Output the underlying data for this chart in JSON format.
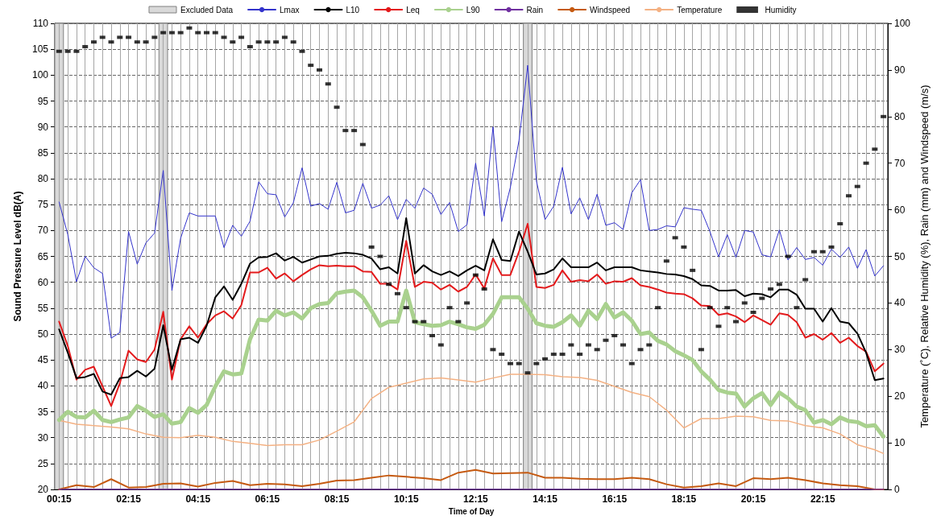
{
  "chart_data": {
    "type": "line",
    "xlabel": "Time of Day",
    "ylabel": "Sound Pressure Level dB(A)",
    "y2label": "Temperature (˚C), Relative Humidity (%), Rain (mm) and Windspeed (m/s)",
    "x": [
      0.25,
      0.5,
      0.75,
      1,
      1.25,
      1.5,
      1.75,
      2,
      2.25,
      2.5,
      2.75,
      3,
      3.25,
      3.5,
      3.75,
      4,
      4.25,
      4.5,
      4.75,
      5,
      5.25,
      5.5,
      5.75,
      6,
      6.25,
      6.5,
      6.75,
      7,
      7.25,
      7.5,
      7.75,
      8,
      8.25,
      8.5,
      8.75,
      9,
      9.25,
      9.5,
      9.75,
      10,
      10.25,
      10.5,
      10.75,
      11,
      11.25,
      11.5,
      11.75,
      12,
      12.25,
      12.5,
      12.75,
      13,
      13.25,
      13.5,
      13.75,
      14,
      14.25,
      14.5,
      14.75,
      15,
      15.25,
      15.5,
      15.75,
      16,
      16.25,
      16.5,
      16.75,
      17,
      17.25,
      17.5,
      17.75,
      18,
      18.25,
      18.5,
      18.75,
      19,
      19.25,
      19.5,
      19.75,
      20,
      20.25,
      20.5,
      20.75,
      21,
      21.25,
      21.5,
      21.75,
      22,
      22.25,
      22.5,
      22.75,
      23,
      23.25,
      23.5,
      23.75,
      24
    ],
    "series": [
      {
        "name": "Lmax",
        "color": "#3333cc",
        "values": [
          75.5,
          69.2,
          60.1,
          65.0,
          62.8,
          61.7,
          49.2,
          50.3,
          69.8,
          63.5,
          67.6,
          69.5,
          81.6,
          58.4,
          68.5,
          73.4,
          72.8,
          72.8,
          72.8,
          66.7,
          71.0,
          68.9,
          71.8,
          79.4,
          77.1,
          76.9,
          72.6,
          75.4,
          82.1,
          74.7,
          75.2,
          74.1,
          79.3,
          73.4,
          73.9,
          79.1,
          74.3,
          74.9,
          76.7,
          72.1,
          76.0,
          74.3,
          78.2,
          77.0,
          73.1,
          75.4,
          69.8,
          71.1,
          83.0,
          72.8,
          90.0,
          71.7,
          78.3,
          87.4,
          101.9,
          79.6,
          72.1,
          74.7,
          82.2,
          73.2,
          76.3,
          72.1,
          77.0,
          71.0,
          71.5,
          70.2,
          77.3,
          79.8,
          70.0,
          70.2,
          70.9,
          70.7,
          74.4,
          74.1,
          73.9,
          69.8,
          64.9,
          69.2,
          64.8,
          70.0,
          69.7,
          65.3,
          64.9,
          70.1,
          64.3,
          66.7,
          64.4,
          64.8,
          63.3,
          66.4,
          64.8,
          66.8,
          62.7,
          66.3,
          61.2,
          63.2
        ]
      },
      {
        "name": "L10",
        "color": "#000000",
        "values": [
          50.9,
          46.4,
          41.5,
          41.7,
          42.3,
          38.9,
          38.3,
          41.5,
          41.7,
          42.9,
          41.8,
          43.3,
          51.7,
          43.1,
          49.0,
          49.3,
          48.3,
          51.6,
          57.1,
          59.2,
          56.6,
          59.7,
          63.6,
          64.8,
          64.9,
          65.6,
          64.2,
          64.9,
          63.8,
          64.4,
          65.0,
          65.1,
          65.5,
          65.7,
          65.6,
          65.3,
          64.6,
          62.5,
          62.9,
          61.7,
          72.4,
          61.7,
          63.3,
          62.1,
          61.4,
          62.1,
          61.2,
          62.3,
          63.2,
          62.3,
          68.3,
          64.3,
          64.1,
          69.8,
          65.9,
          61.5,
          61.7,
          62.5,
          64.6,
          62.9,
          62.9,
          62.9,
          63.8,
          62.3,
          62.9,
          62.9,
          62.9,
          62.3,
          62.1,
          61.9,
          61.6,
          61.5,
          61.2,
          60.6,
          59.4,
          59.3,
          58.4,
          58.4,
          58.5,
          57.3,
          57.8,
          57.7,
          57.1,
          58.6,
          58.6,
          57.6,
          54.9,
          54.9,
          52.4,
          55.0,
          52.4,
          52.1,
          50.1,
          46.4,
          41.1,
          41.4
        ]
      },
      {
        "name": "Leq",
        "color": "#e31a1c",
        "values": [
          52.4,
          47.7,
          41.2,
          43.1,
          43.7,
          39.9,
          36.1,
          40.5,
          46.8,
          45.1,
          44.6,
          47.0,
          54.3,
          41.2,
          49.0,
          51.5,
          49.3,
          51.9,
          53.6,
          54.4,
          53.0,
          55.6,
          61.9,
          61.9,
          62.8,
          60.7,
          61.7,
          60.2,
          61.4,
          62.5,
          63.3,
          63.1,
          63.2,
          63.1,
          63.1,
          62.1,
          62.0,
          59.7,
          59.7,
          58.6,
          68.0,
          59.1,
          60.1,
          59.9,
          58.6,
          59.5,
          58.2,
          59.1,
          61.5,
          58.8,
          64.6,
          61.4,
          61.4,
          65.9,
          71.3,
          59.1,
          58.9,
          59.5,
          62.3,
          60.1,
          60.4,
          60.2,
          61.5,
          59.7,
          60.2,
          60.1,
          60.8,
          59.4,
          59.1,
          58.6,
          58.0,
          57.8,
          57.7,
          56.9,
          55.5,
          55.4,
          53.7,
          54.0,
          53.4,
          52.3,
          53.6,
          52.7,
          51.8,
          54.0,
          53.7,
          52.3,
          49.3,
          50.0,
          48.9,
          50.2,
          48.3,
          49.3,
          47.7,
          46.6,
          42.8,
          44.3
        ]
      },
      {
        "name": "L90",
        "color": "#a9d18e",
        "values": [
          33.4,
          35.0,
          34.0,
          33.9,
          35.2,
          33.4,
          33.0,
          33.5,
          33.9,
          36.1,
          35.2,
          34.0,
          34.5,
          32.7,
          33.0,
          35.7,
          34.8,
          36.3,
          39.9,
          42.8,
          42.2,
          42.4,
          49.0,
          52.8,
          52.6,
          54.5,
          53.6,
          54.2,
          53.0,
          55.0,
          55.8,
          56.0,
          57.9,
          58.2,
          58.4,
          57.1,
          54.5,
          51.6,
          52.4,
          52.4,
          58.4,
          52.3,
          51.9,
          51.6,
          51.7,
          52.4,
          51.9,
          51.3,
          51.0,
          51.8,
          53.9,
          57.1,
          57.1,
          57.1,
          54.9,
          52.1,
          51.6,
          51.4,
          52.3,
          53.6,
          51.6,
          54.5,
          52.9,
          55.8,
          53.2,
          54.2,
          52.6,
          50.0,
          50.3,
          48.7,
          48.0,
          46.7,
          45.9,
          45.0,
          42.8,
          41.2,
          39.2,
          38.7,
          38.5,
          36.0,
          37.6,
          38.6,
          36.3,
          38.7,
          37.6,
          36.0,
          35.3,
          32.9,
          33.4,
          32.6,
          33.9,
          33.2,
          33.0,
          32.2,
          32.4,
          30.2
        ]
      },
      {
        "name": "Rain",
        "color": "#7030a0",
        "axis": "y2",
        "x": [
          0.25,
          24
        ],
        "values": [
          0,
          0
        ]
      },
      {
        "name": "Windspeed",
        "color": "#c55a11",
        "axis": "y2",
        "x": [
          0.25,
          0.75,
          1.25,
          1.75,
          2.25,
          2.75,
          3.25,
          3.75,
          4.25,
          4.75,
          5.25,
          5.75,
          6.25,
          6.75,
          7.25,
          7.75,
          8.25,
          8.75,
          9.25,
          9.75,
          10.25,
          10.75,
          11.25,
          11.75,
          12.25,
          12.75,
          13.25,
          13.75,
          14.25,
          14.75,
          15.25,
          15.75,
          16.25,
          16.75,
          17.25,
          17.75,
          18.25,
          18.75,
          19.25,
          19.75,
          20.25,
          20.75,
          21.25,
          21.75,
          22.25,
          22.75,
          23.25,
          23.75,
          24
        ],
        "values": [
          0,
          0.9,
          0.5,
          2.2,
          0.4,
          0.5,
          1.2,
          1.3,
          0.6,
          1.4,
          1.8,
          0.9,
          1.2,
          1.1,
          0.7,
          1.2,
          1.9,
          2.0,
          2.5,
          3.0,
          2.7,
          2.4,
          2.0,
          3.6,
          4.2,
          3.4,
          3.5,
          3.6,
          2.5,
          2.5,
          2.3,
          2.2,
          2.2,
          2.5,
          2.2,
          1.1,
          0.4,
          0.7,
          1.3,
          0.7,
          2.4,
          2.2,
          2.5,
          2.0,
          1.3,
          0.9,
          0.7,
          0,
          0
        ]
      },
      {
        "name": "Temperature",
        "color": "#f4b183",
        "axis": "y2",
        "x": [
          0.25,
          0.75,
          1.25,
          1.75,
          2.25,
          2.75,
          3.25,
          3.75,
          4.25,
          4.75,
          5.25,
          5.75,
          6.25,
          6.75,
          7.25,
          7.75,
          8.25,
          8.75,
          9.25,
          9.75,
          10.25,
          10.75,
          11.25,
          11.75,
          12.25,
          12.75,
          13.25,
          13.75,
          14.25,
          14.75,
          15.25,
          15.75,
          16.25,
          16.75,
          17.25,
          17.75,
          18.25,
          18.75,
          19.25,
          19.75,
          20.25,
          20.75,
          21.25,
          21.75,
          22.25,
          22.75,
          23.25,
          23.75,
          24
        ],
        "values": [
          14.8,
          14.0,
          13.7,
          13.4,
          13.0,
          11.9,
          11.2,
          11.1,
          11.6,
          11.2,
          10.3,
          9.9,
          9.4,
          9.6,
          9.6,
          10.6,
          12.5,
          14.5,
          19.5,
          21.9,
          22.8,
          23.7,
          23.9,
          23.5,
          23.0,
          23.9,
          24.7,
          24.7,
          24.6,
          24.2,
          24.0,
          23.4,
          22.1,
          20.8,
          19.9,
          17.0,
          13.2,
          15.2,
          15.2,
          15.7,
          15.6,
          14.8,
          14.7,
          13.7,
          13.2,
          11.9,
          9.6,
          8.5,
          7.7
        ]
      },
      {
        "name": "Humidity",
        "color": "#000000",
        "axis": "y2",
        "type": "scatter",
        "marker": "square",
        "values": [
          94,
          94,
          94,
          95,
          96,
          97,
          96,
          97,
          97,
          96,
          96,
          97,
          98,
          98,
          98,
          99,
          98,
          98,
          98,
          97,
          96,
          97,
          95,
          96,
          96,
          96,
          97,
          96,
          94,
          91,
          90,
          87,
          82,
          77,
          77,
          74,
          52,
          50,
          44,
          42,
          39,
          36,
          36,
          33,
          31,
          39,
          36,
          40,
          46,
          43,
          30,
          29,
          27,
          27,
          25,
          27,
          28,
          29,
          29,
          31,
          29,
          31,
          30,
          32,
          33,
          31,
          27,
          30,
          31,
          39,
          49,
          54,
          52,
          47,
          30,
          39,
          35,
          39,
          36,
          40,
          38,
          41,
          43,
          44,
          50,
          39,
          45,
          51,
          51,
          52,
          57,
          63,
          65,
          70,
          73,
          80
        ]
      }
    ],
    "bands": [
      {
        "axis": "x",
        "from": 0.125,
        "to": 0.375,
        "label": "Excluded Data",
        "color": "#d9d9d9"
      },
      {
        "axis": "x",
        "from": 3.125,
        "to": 3.375,
        "color": "#d9d9d9"
      },
      {
        "axis": "x",
        "from": 13.625,
        "to": 13.875,
        "color": "#d9d9d9"
      }
    ],
    "xlim": [
      0.125,
      24.125
    ],
    "xticks": [
      {
        "value": 0.25,
        "label": "00:15"
      },
      {
        "value": 2.25,
        "label": "02:15"
      },
      {
        "value": 4.25,
        "label": "04:15"
      },
      {
        "value": 6.25,
        "label": "06:15"
      },
      {
        "value": 8.25,
        "label": "08:15"
      },
      {
        "value": 10.25,
        "label": "10:15"
      },
      {
        "value": 12.25,
        "label": "12:15"
      },
      {
        "value": 14.25,
        "label": "14:15"
      },
      {
        "value": 16.25,
        "label": "16:15"
      },
      {
        "value": 18.25,
        "label": "18:15"
      },
      {
        "value": 20.25,
        "label": "20:15"
      },
      {
        "value": 22.25,
        "label": "22:15"
      },
      {
        "value": 0.5,
        "label": null
      },
      {
        "value": 0.75,
        "label": null
      },
      {
        "value": 1,
        "label": null
      },
      {
        "value": 1.25,
        "label": null
      },
      {
        "value": 1.5,
        "label": null
      },
      {
        "value": 1.75,
        "label": null
      },
      {
        "value": 2,
        "label": null
      },
      {
        "value": 2.5,
        "label": null
      },
      {
        "value": 2.75,
        "label": null
      },
      {
        "value": 3,
        "label": null
      },
      {
        "value": 3.25,
        "label": null
      },
      {
        "value": 3.5,
        "label": null
      },
      {
        "value": 3.75,
        "label": null
      },
      {
        "value": 4,
        "label": null
      },
      {
        "value": 4.5,
        "label": null
      },
      {
        "value": 4.75,
        "label": null
      },
      {
        "value": 5,
        "label": null
      },
      {
        "value": 5.25,
        "label": null
      },
      {
        "value": 5.5,
        "label": null
      },
      {
        "value": 5.75,
        "label": null
      },
      {
        "value": 6,
        "label": null
      },
      {
        "value": 6.5,
        "label": null
      },
      {
        "value": 6.75,
        "label": null
      },
      {
        "value": 7,
        "label": null
      },
      {
        "value": 7.25,
        "label": null
      },
      {
        "value": 7.5,
        "label": null
      },
      {
        "value": 7.75,
        "label": null
      },
      {
        "value": 8,
        "label": null
      },
      {
        "value": 8.5,
        "label": null
      },
      {
        "value": 8.75,
        "label": null
      },
      {
        "value": 9,
        "label": null
      },
      {
        "value": 9.25,
        "label": null
      },
      {
        "value": 9.5,
        "label": null
      },
      {
        "value": 9.75,
        "label": null
      },
      {
        "value": 10,
        "label": null
      },
      {
        "value": 10.5,
        "label": null
      },
      {
        "value": 10.75,
        "label": null
      },
      {
        "value": 11,
        "label": null
      },
      {
        "value": 11.25,
        "label": null
      },
      {
        "value": 11.5,
        "label": null
      },
      {
        "value": 11.75,
        "label": null
      },
      {
        "value": 12,
        "label": null
      },
      {
        "value": 12.5,
        "label": null
      },
      {
        "value": 12.75,
        "label": null
      },
      {
        "value": 13,
        "label": null
      },
      {
        "value": 13.25,
        "label": null
      },
      {
        "value": 13.5,
        "label": null
      },
      {
        "value": 13.75,
        "label": null
      },
      {
        "value": 14,
        "label": null
      },
      {
        "value": 14.5,
        "label": null
      },
      {
        "value": 14.75,
        "label": null
      },
      {
        "value": 15,
        "label": null
      },
      {
        "value": 15.25,
        "label": null
      },
      {
        "value": 15.5,
        "label": null
      },
      {
        "value": 15.75,
        "label": null
      },
      {
        "value": 16,
        "label": null
      },
      {
        "value": 16.5,
        "label": null
      },
      {
        "value": 16.75,
        "label": null
      },
      {
        "value": 17,
        "label": null
      },
      {
        "value": 17.25,
        "label": null
      },
      {
        "value": 17.5,
        "label": null
      },
      {
        "value": 17.75,
        "label": null
      },
      {
        "value": 18,
        "label": null
      },
      {
        "value": 18.5,
        "label": null
      },
      {
        "value": 18.75,
        "label": null
      },
      {
        "value": 19,
        "label": null
      },
      {
        "value": 19.25,
        "label": null
      },
      {
        "value": 19.5,
        "label": null
      },
      {
        "value": 19.75,
        "label": null
      },
      {
        "value": 20,
        "label": null
      },
      {
        "value": 20.5,
        "label": null
      },
      {
        "value": 20.75,
        "label": null
      },
      {
        "value": 21,
        "label": null
      },
      {
        "value": 21.25,
        "label": null
      },
      {
        "value": 21.5,
        "label": null
      },
      {
        "value": 21.75,
        "label": null
      },
      {
        "value": 22,
        "label": null
      },
      {
        "value": 22.5,
        "label": null
      },
      {
        "value": 22.75,
        "label": null
      },
      {
        "value": 23,
        "label": null
      },
      {
        "value": 23.25,
        "label": null
      },
      {
        "value": 23.5,
        "label": null
      },
      {
        "value": 23.75,
        "label": null
      },
      {
        "value": 24,
        "label": null
      }
    ],
    "ylim": [
      20,
      110
    ],
    "yticks": [
      20,
      25,
      30,
      35,
      40,
      45,
      50,
      55,
      60,
      65,
      70,
      75,
      80,
      85,
      90,
      95,
      100,
      105,
      110
    ],
    "y2lim": [
      0,
      100
    ],
    "y2ticks": [
      0,
      10,
      20,
      30,
      40,
      50,
      60,
      70,
      80,
      90,
      100
    ],
    "grid": true,
    "legend": "top",
    "marker": "none",
    "line_style": "solid"
  }
}
